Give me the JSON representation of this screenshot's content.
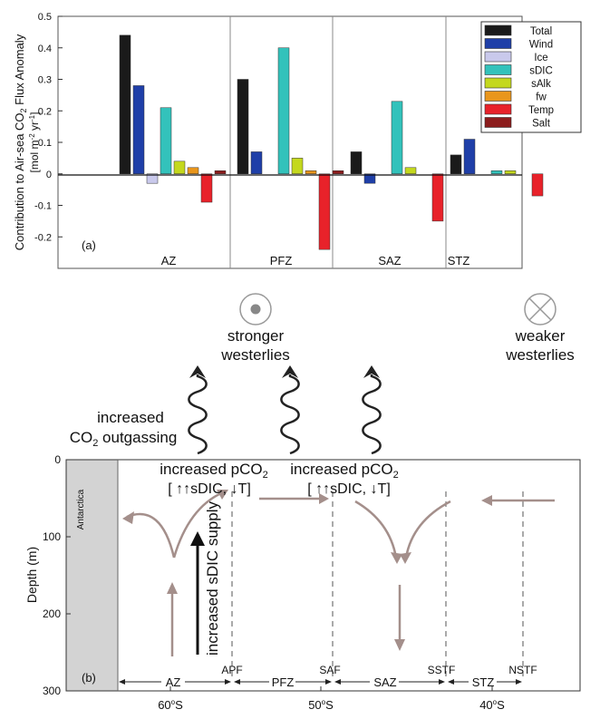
{
  "chart_data": [
    {
      "type": "bar",
      "panel_label": "(a)",
      "ylabel_line1": "Contribution to Air-sea CO",
      "ylabel_sub": "2",
      "ylabel_line1_tail": " Flux Anomaly",
      "ylabel_line2": "[mol m",
      "ylabel_line2_sup1": "-2",
      "ylabel_line2_mid": " yr",
      "ylabel_line2_sup2": "-1",
      "ylabel_line2_tail": "]",
      "ylim": [
        -0.3,
        0.5
      ],
      "yticks": [
        "0.5",
        "0.4",
        "0.3",
        "0.2",
        "0.1",
        "0",
        "-0.1",
        "-0.2"
      ],
      "ytick_values": [
        0.5,
        0.4,
        0.3,
        0.2,
        0.1,
        0,
        -0.1,
        -0.2
      ],
      "categories": [
        "AZ",
        "PFZ",
        "SAZ",
        "STZ"
      ],
      "legend_position": "top-right",
      "series": [
        {
          "name": "Total",
          "color": "#1a1a1a",
          "values": [
            0.44,
            0.3,
            0.07,
            0.06
          ]
        },
        {
          "name": "Wind",
          "color": "#1f3fa8",
          "values": [
            0.28,
            0.07,
            -0.03,
            0.11
          ]
        },
        {
          "name": "Ice",
          "color": "#c9c9ec",
          "values": [
            -0.03,
            0,
            0,
            0
          ]
        },
        {
          "name": "sDIC",
          "color": "#33c2bb",
          "values": [
            0.21,
            0.4,
            0.23,
            0.01
          ]
        },
        {
          "name": "sAlk",
          "color": "#c4d81e",
          "values": [
            0.04,
            0.05,
            0.02,
            0.01
          ]
        },
        {
          "name": "fw",
          "color": "#e9961c",
          "values": [
            0.02,
            0.01,
            0,
            0
          ]
        },
        {
          "name": "Temp",
          "color": "#e8222a",
          "values": [
            -0.09,
            -0.24,
            -0.15,
            -0.07
          ]
        },
        {
          "name": "Salt",
          "color": "#8c1c1c",
          "values": [
            0.01,
            0.01,
            0,
            0
          ]
        }
      ]
    },
    {
      "type": "diagram",
      "panel_label": "(b)",
      "ylabel": "Depth (m)",
      "yticks": [
        "0",
        "100",
        "200",
        "300"
      ],
      "xticks": [
        "60",
        "50",
        "40"
      ],
      "xtick_suffix": "S",
      "xtick_deg": "o",
      "land_label": "Antarctica",
      "fronts": [
        "APF",
        "SAF",
        "SSTF",
        "NSTF"
      ],
      "zones": [
        "AZ",
        "PFZ",
        "SAZ",
        "STZ"
      ]
    }
  ],
  "annotations": {
    "stronger_line1": "stronger",
    "stronger_line2": "westerlies",
    "weaker_line1": "weaker",
    "weaker_line2": "westerlies",
    "outgassing_line1": "increased",
    "outgassing_line2": "CO",
    "outgassing_sub": "2",
    "outgassing_tail": " outgassing",
    "pco2_text": "increased pCO",
    "pco2_sub": "2",
    "sdic_text": "[ ↑↑sDIC, ↓T]",
    "supply_text": "increased sDIC supply"
  }
}
